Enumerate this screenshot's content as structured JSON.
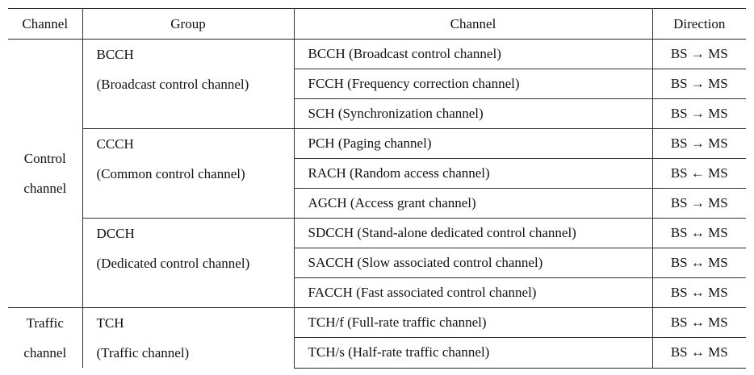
{
  "headers": {
    "category": "Channel",
    "group": "Group",
    "channel": "Channel",
    "direction": "Direction"
  },
  "sections": [
    {
      "category_line1": "Control",
      "category_line2": "channel",
      "groups": [
        {
          "abbr": "BCCH",
          "full": "(Broadcast control channel)",
          "channels": [
            {
              "name": "BCCH (Broadcast control channel)",
              "direction": "BS → MS"
            },
            {
              "name": "FCCH (Frequency correction channel)",
              "direction": "BS → MS"
            },
            {
              "name": "SCH (Synchronization channel)",
              "direction": "BS → MS"
            }
          ]
        },
        {
          "abbr": "CCCH",
          "full": "(Common control channel)",
          "channels": [
            {
              "name": "PCH (Paging channel)",
              "direction": "BS → MS"
            },
            {
              "name": "RACH (Random access channel)",
              "direction": "BS ← MS"
            },
            {
              "name": "AGCH (Access grant channel)",
              "direction": "BS → MS"
            }
          ]
        },
        {
          "abbr": "DCCH",
          "full": "(Dedicated control channel)",
          "channels": [
            {
              "name": "SDCCH (Stand-alone dedicated control channel)",
              "direction": "BS ↔ MS"
            },
            {
              "name": "SACCH (Slow associated control channel)",
              "direction": "BS ↔ MS"
            },
            {
              "name": "FACCH (Fast associated control channel)",
              "direction": "BS ↔ MS"
            }
          ]
        }
      ]
    },
    {
      "category_line1": "Traffic",
      "category_line2": "channel",
      "groups": [
        {
          "abbr": "TCH",
          "full": "(Traffic channel)",
          "channels": [
            {
              "name": "TCH/f (Full-rate traffic channel)",
              "direction": "BS ↔ MS"
            },
            {
              "name": "TCH/s (Half-rate traffic channel)",
              "direction": "BS ↔ MS"
            }
          ]
        }
      ]
    }
  ]
}
